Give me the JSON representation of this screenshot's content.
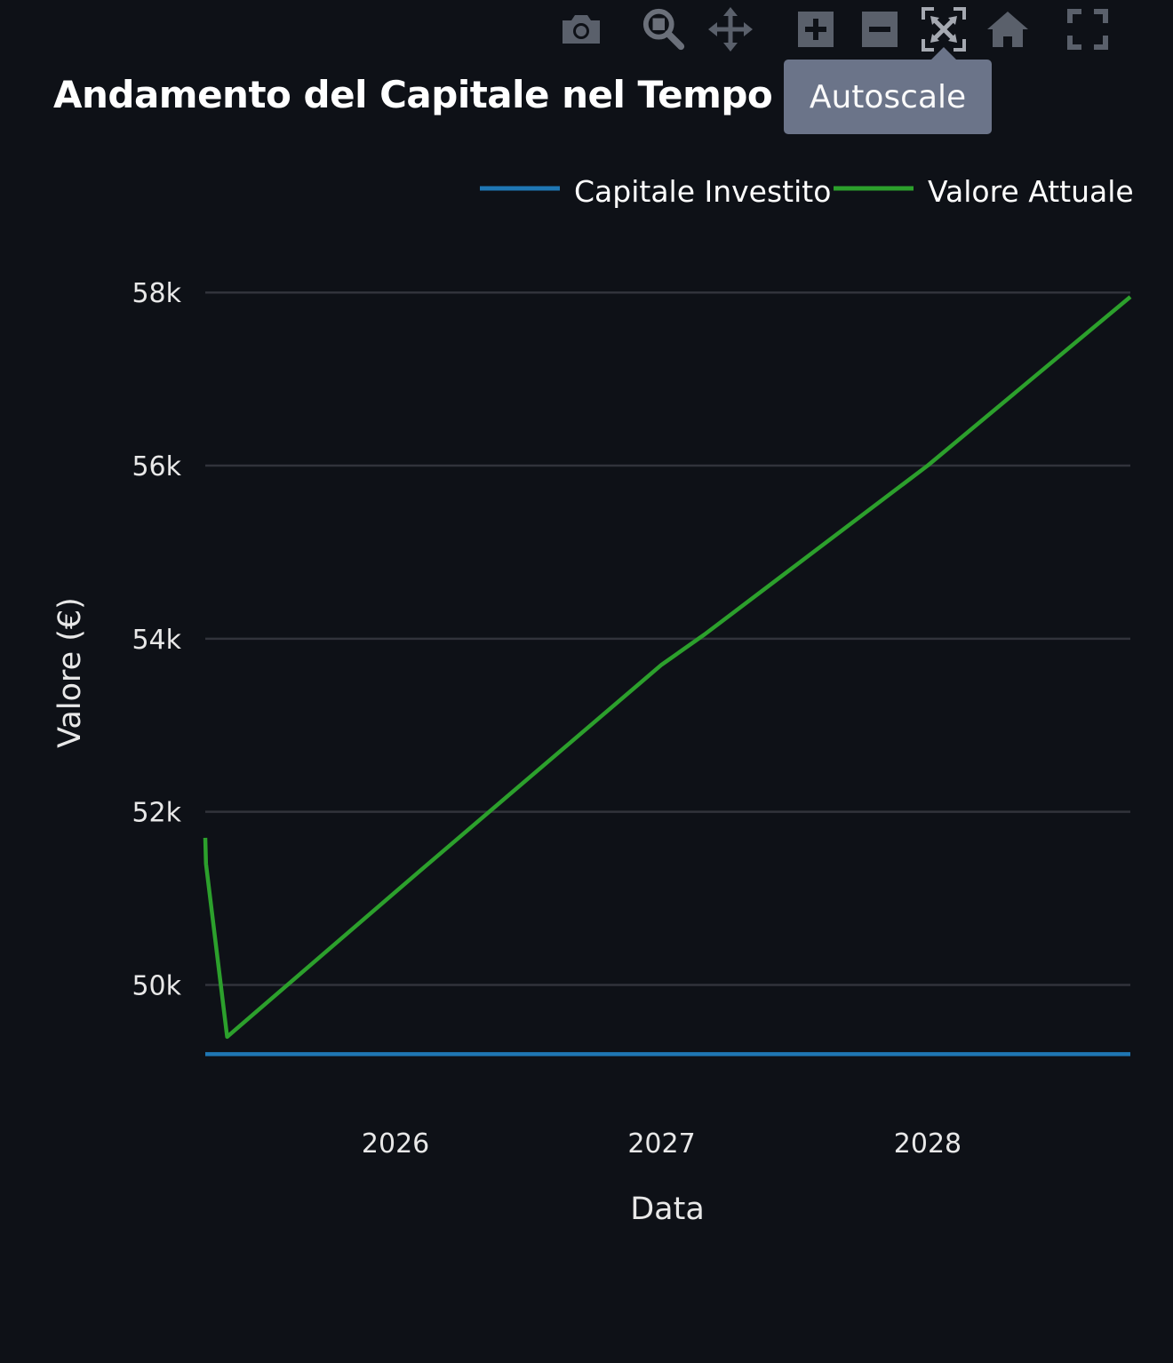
{
  "modebar": {
    "buttons": [
      {
        "name": "camera-icon"
      },
      {
        "name": "zoom-icon"
      },
      {
        "name": "pan-icon"
      },
      {
        "name": "zoom-in-icon"
      },
      {
        "name": "zoom-out-icon"
      },
      {
        "name": "autoscale-icon"
      },
      {
        "name": "home-icon"
      },
      {
        "name": "fullscreen-icon"
      }
    ],
    "tooltip": "Autoscale"
  },
  "chart_data": {
    "type": "line",
    "title": "Andamento del Capitale nel Tempo",
    "xlabel": "Data",
    "ylabel": "Valore (€)",
    "x_ticks": [
      "2026",
      "2027",
      "2028"
    ],
    "y_ticks": [
      "50k",
      "52k",
      "54k",
      "56k",
      "58k"
    ],
    "y_tick_values": [
      50000,
      52000,
      54000,
      56000,
      58000
    ],
    "x_tick_dates": [
      "2026-01-01",
      "2027-01-01",
      "2028-01-01"
    ],
    "xlim": [
      "2025-04-15",
      "2028-10-05"
    ],
    "ylim": [
      48650,
      58300
    ],
    "grid": true,
    "legend_position": "top-right",
    "series": [
      {
        "name": "Capitale Investito",
        "color": "#1f77b4",
        "points": [
          {
            "x": "2025-04-15",
            "y": 49200
          },
          {
            "x": "2028-10-05",
            "y": 49200
          }
        ]
      },
      {
        "name": "Valore Attuale",
        "color": "#2ca02c",
        "points": [
          {
            "x": "2025-04-15",
            "y": 51700
          },
          {
            "x": "2025-04-16",
            "y": 51400
          },
          {
            "x": "2025-05-15",
            "y": 49400
          },
          {
            "x": "2026-02-01",
            "y": 51300
          },
          {
            "x": "2027-01-01",
            "y": 53700
          },
          {
            "x": "2027-03-01",
            "y": 54050
          },
          {
            "x": "2028-01-01",
            "y": 56000
          },
          {
            "x": "2028-10-05",
            "y": 57950
          }
        ]
      }
    ]
  }
}
